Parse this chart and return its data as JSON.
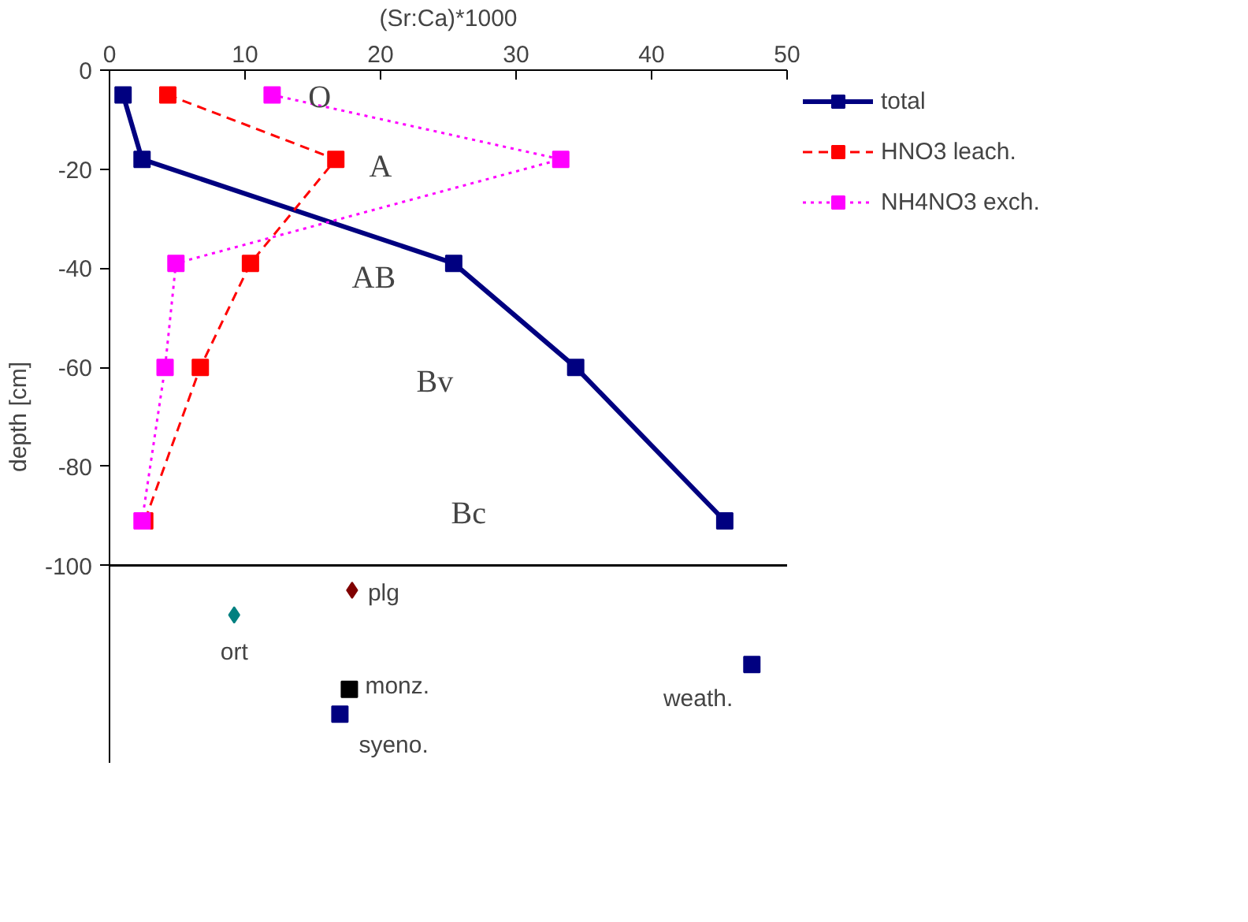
{
  "chart_data": {
    "type": "line",
    "xlabel": "(Sr:Ca)*1000",
    "ylabel": "depth [cm]",
    "xlim": [
      0,
      50
    ],
    "xticks": [
      0,
      10,
      20,
      30,
      40,
      50
    ],
    "ylim": [
      -140,
      0
    ],
    "yticks": [
      0,
      -20,
      -40,
      -60,
      -80,
      -100
    ],
    "grid": false,
    "legend": "right",
    "series": [
      {
        "name": "total",
        "color": "#000080",
        "marker": "square",
        "line_style": "solid",
        "x": [
          1.0,
          2.4,
          25.4,
          34.4,
          45.4
        ],
        "values": [
          -5,
          -18,
          -39,
          -60,
          -91
        ]
      },
      {
        "name": "HNO3 leach.",
        "color": "#ff0000",
        "marker": "square",
        "line_style": "dashed",
        "x": [
          4.3,
          16.7,
          10.4,
          6.7,
          2.6
        ],
        "values": [
          -5,
          -18,
          -39,
          -60,
          -91
        ]
      },
      {
        "name": "NH4NO3 exch.",
        "color": "#ff00ff",
        "marker": "square",
        "line_style": "dotted",
        "x": [
          12.0,
          33.3,
          4.9,
          4.1,
          2.4
        ],
        "values": [
          -5,
          -18,
          -39,
          -60,
          -91
        ]
      },
      {
        "name": "ort",
        "type": "scatter",
        "color": "#008080",
        "marker": "diamond",
        "x": [
          9.2
        ],
        "values": [
          -110
        ]
      },
      {
        "name": "plg",
        "type": "scatter",
        "color": "#800000",
        "marker": "diamond",
        "x": [
          17.9
        ],
        "values": [
          -105
        ]
      },
      {
        "name": "monz.",
        "type": "scatter",
        "color": "#000000",
        "marker": "square",
        "x": [
          17.7
        ],
        "values": [
          -125
        ]
      },
      {
        "name": "syeno.",
        "type": "scatter",
        "color": "#000080",
        "marker": "square",
        "x": [
          17.0
        ],
        "values": [
          -130
        ]
      },
      {
        "name": "weath.",
        "type": "scatter",
        "color": "#000080",
        "marker": "square",
        "x": [
          47.4
        ],
        "values": [
          -120
        ]
      }
    ],
    "ref_lines": [
      {
        "axis": "y",
        "value": -100,
        "label": null,
        "color": "#000000"
      }
    ],
    "annotations": [
      "O",
      "A",
      "AB",
      "Bv",
      "Bc"
    ]
  }
}
